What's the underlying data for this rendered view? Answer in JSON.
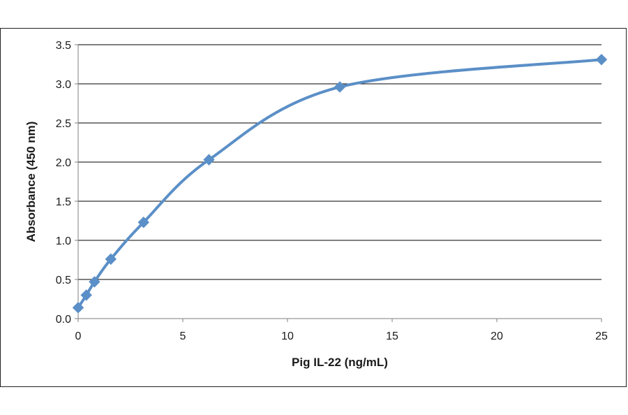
{
  "chart_data": {
    "type": "line",
    "title": "",
    "xlabel": "Pig IL-22 (ng/mL)",
    "ylabel": "Absorbance  (450  nm)",
    "xlim": [
      0,
      25
    ],
    "ylim": [
      0,
      3.5
    ],
    "x_ticks": [
      "0",
      "5",
      "10",
      "15",
      "20",
      "25"
    ],
    "y_ticks": [
      "0.0",
      "0.5",
      "1.0",
      "1.5",
      "2.0",
      "2.5",
      "3.0",
      "3.5"
    ],
    "grid": "horizontal",
    "legend": "none",
    "series": [
      {
        "x": [
          0,
          0.39,
          0.78,
          1.56,
          3.125,
          6.25,
          12.5,
          25
        ],
        "y": [
          0.14,
          0.3,
          0.47,
          0.76,
          1.23,
          2.03,
          2.96,
          3.31
        ],
        "color": "#5b8fc7",
        "marker": "diamond"
      }
    ]
  }
}
